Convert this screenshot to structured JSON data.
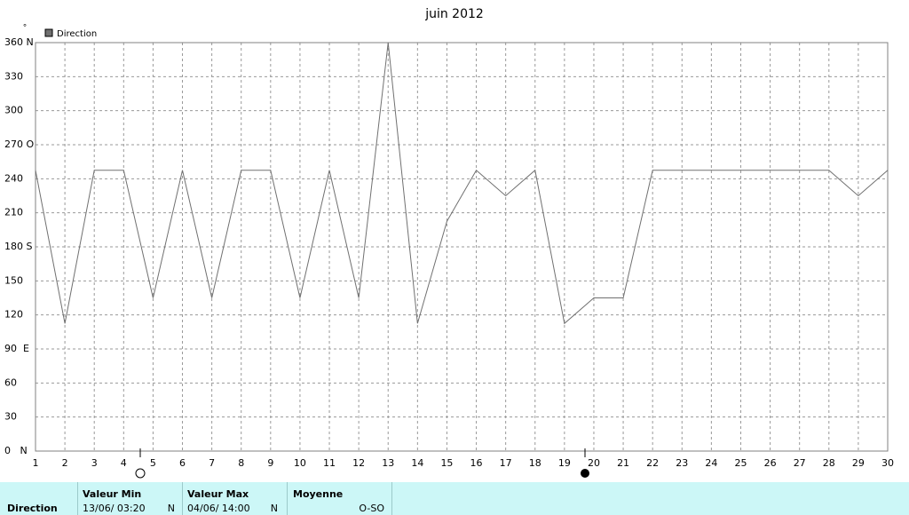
{
  "chart_data": {
    "type": "line",
    "title": "juin 2012",
    "y_label": "°",
    "x": [
      1,
      2,
      3,
      4,
      5,
      6,
      7,
      8,
      9,
      10,
      11,
      12,
      13,
      14,
      15,
      16,
      17,
      18,
      19,
      20,
      21,
      22,
      23,
      24,
      25,
      26,
      27,
      28,
      29,
      30
    ],
    "series": [
      {
        "name": "Direction",
        "color": "#707070",
        "values": [
          247.5,
          112.5,
          247.5,
          247.5,
          135,
          247.5,
          135,
          247.5,
          247.5,
          135,
          247.5,
          135,
          360,
          112.5,
          202.5,
          247.5,
          225,
          247.5,
          112.5,
          135,
          135,
          247.5,
          247.5,
          247.5,
          247.5,
          247.5,
          247.5,
          247.5,
          225,
          247.5
        ]
      }
    ],
    "xlim": [
      1,
      30
    ],
    "xticks": [
      1,
      2,
      3,
      4,
      5,
      6,
      7,
      8,
      9,
      10,
      11,
      12,
      13,
      14,
      15,
      16,
      17,
      18,
      19,
      20,
      21,
      22,
      23,
      24,
      25,
      26,
      27,
      28,
      29,
      30
    ],
    "ylim": [
      0,
      360
    ],
    "yticks": [
      {
        "value": 0,
        "label": "0   N"
      },
      30,
      60,
      {
        "value": 90,
        "label": "90  E"
      },
      120,
      150,
      {
        "value": 180,
        "label": "180 S"
      },
      210,
      240,
      {
        "value": 270,
        "label": "270 O"
      },
      300,
      330,
      {
        "value": 360,
        "label": "360 N"
      }
    ],
    "grid": true,
    "legend": "top-left"
  },
  "summary": {
    "label": "Direction",
    "min": {
      "header": "Valeur Min",
      "time": "13/06/  03:20",
      "dir": "N"
    },
    "max": {
      "header": "Valeur Max",
      "time": "04/06/  14:00",
      "dir": "N"
    },
    "mean": {
      "header": "Moyenne",
      "value": "O-SO"
    }
  }
}
